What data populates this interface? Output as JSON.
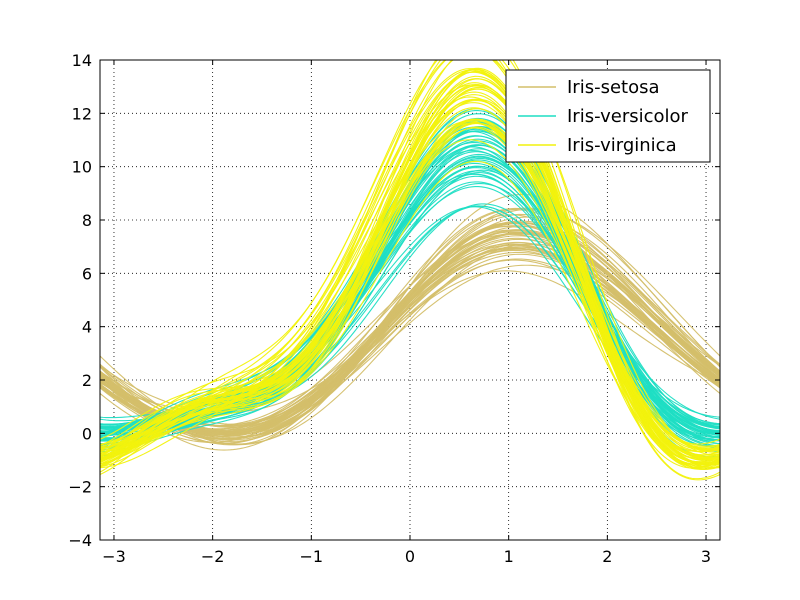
{
  "chart_data": {
    "type": "line",
    "title": "",
    "xlabel": "",
    "ylabel": "",
    "xlim": [
      -3.14159,
      3.14159
    ],
    "ylim": [
      -4,
      14
    ],
    "x_ticks": [
      -3,
      -2,
      -1,
      0,
      1,
      2,
      3
    ],
    "x_tick_labels": [
      "−3",
      "−2",
      "−1",
      "0",
      "1",
      "2",
      "3"
    ],
    "y_ticks": [
      -4,
      -2,
      0,
      2,
      4,
      6,
      8,
      10,
      12,
      14
    ],
    "y_tick_labels": [
      "−4",
      "−2",
      "0",
      "2",
      "4",
      "6",
      "8",
      "10",
      "12",
      "14"
    ],
    "grid": true,
    "legend": {
      "placement": "top-right"
    },
    "series": [
      {
        "name": "Iris-setosa",
        "color": "#d4bf6a",
        "curves": [
          [
            5.1,
            3.5,
            1.4,
            0.2
          ],
          [
            4.9,
            3.0,
            1.4,
            0.2
          ],
          [
            4.7,
            3.2,
            1.3,
            0.2
          ],
          [
            4.6,
            3.1,
            1.5,
            0.2
          ],
          [
            5.0,
            3.6,
            1.4,
            0.2
          ],
          [
            5.4,
            3.9,
            1.7,
            0.4
          ],
          [
            4.6,
            3.4,
            1.4,
            0.3
          ],
          [
            5.0,
            3.4,
            1.5,
            0.2
          ],
          [
            4.4,
            2.9,
            1.4,
            0.2
          ],
          [
            4.9,
            3.1,
            1.5,
            0.1
          ],
          [
            5.4,
            3.7,
            1.5,
            0.2
          ],
          [
            4.8,
            3.4,
            1.6,
            0.2
          ],
          [
            4.8,
            3.0,
            1.4,
            0.1
          ],
          [
            4.3,
            3.0,
            1.1,
            0.1
          ],
          [
            5.8,
            4.0,
            1.2,
            0.2
          ],
          [
            5.7,
            4.4,
            1.5,
            0.4
          ],
          [
            5.4,
            3.9,
            1.3,
            0.4
          ],
          [
            5.1,
            3.5,
            1.4,
            0.3
          ],
          [
            5.7,
            3.8,
            1.7,
            0.3
          ],
          [
            5.1,
            3.8,
            1.5,
            0.3
          ],
          [
            5.4,
            3.4,
            1.7,
            0.2
          ],
          [
            5.1,
            3.7,
            1.5,
            0.4
          ],
          [
            4.6,
            3.6,
            1.0,
            0.2
          ],
          [
            5.1,
            3.3,
            1.7,
            0.5
          ],
          [
            4.8,
            3.4,
            1.9,
            0.2
          ],
          [
            5.0,
            3.0,
            1.6,
            0.2
          ],
          [
            5.0,
            3.4,
            1.6,
            0.4
          ],
          [
            5.2,
            3.5,
            1.5,
            0.2
          ],
          [
            5.2,
            3.4,
            1.4,
            0.2
          ],
          [
            4.7,
            3.2,
            1.6,
            0.2
          ],
          [
            4.8,
            3.1,
            1.6,
            0.2
          ],
          [
            5.4,
            3.4,
            1.5,
            0.4
          ],
          [
            5.2,
            4.1,
            1.5,
            0.1
          ],
          [
            5.5,
            4.2,
            1.4,
            0.2
          ],
          [
            4.9,
            3.1,
            1.5,
            0.1
          ],
          [
            5.0,
            3.2,
            1.2,
            0.2
          ],
          [
            5.5,
            3.5,
            1.3,
            0.2
          ],
          [
            4.4,
            3.0,
            1.3,
            0.2
          ],
          [
            5.1,
            3.4,
            1.5,
            0.2
          ],
          [
            5.0,
            3.5,
            1.3,
            0.3
          ],
          [
            4.5,
            2.3,
            1.3,
            0.3
          ],
          [
            4.4,
            3.2,
            1.3,
            0.2
          ],
          [
            5.0,
            3.5,
            1.6,
            0.6
          ],
          [
            5.1,
            3.8,
            1.9,
            0.4
          ],
          [
            4.8,
            3.0,
            1.4,
            0.3
          ],
          [
            5.1,
            3.8,
            1.6,
            0.2
          ],
          [
            4.6,
            3.2,
            1.4,
            0.2
          ],
          [
            5.3,
            3.7,
            1.5,
            0.2
          ],
          [
            5.0,
            3.3,
            1.4,
            0.2
          ],
          [
            5.7,
            3.0,
            1.5,
            0.2
          ]
        ]
      },
      {
        "name": "Iris-versicolor",
        "color": "#1fdec4",
        "curves": [
          [
            7.0,
            3.2,
            4.7,
            1.4
          ],
          [
            6.4,
            3.2,
            4.5,
            1.5
          ],
          [
            6.9,
            3.1,
            4.9,
            1.5
          ],
          [
            5.5,
            2.3,
            4.0,
            1.3
          ],
          [
            6.5,
            2.8,
            4.6,
            1.5
          ],
          [
            5.7,
            2.8,
            4.5,
            1.3
          ],
          [
            6.3,
            3.3,
            4.7,
            1.6
          ],
          [
            4.9,
            2.4,
            3.3,
            1.0
          ],
          [
            6.6,
            2.9,
            4.6,
            1.3
          ],
          [
            5.2,
            2.7,
            3.9,
            1.4
          ],
          [
            5.0,
            2.0,
            3.5,
            1.0
          ],
          [
            5.9,
            3.0,
            4.2,
            1.5
          ],
          [
            6.0,
            2.2,
            4.0,
            1.0
          ],
          [
            6.1,
            2.9,
            4.7,
            1.4
          ],
          [
            5.6,
            2.9,
            3.6,
            1.3
          ],
          [
            6.7,
            3.1,
            4.4,
            1.4
          ],
          [
            5.6,
            3.0,
            4.5,
            1.5
          ],
          [
            5.8,
            2.7,
            4.1,
            1.0
          ],
          [
            6.2,
            2.2,
            4.5,
            1.5
          ],
          [
            5.6,
            2.5,
            3.9,
            1.1
          ],
          [
            5.9,
            3.2,
            4.8,
            1.8
          ],
          [
            6.1,
            2.8,
            4.0,
            1.3
          ],
          [
            6.3,
            2.5,
            4.9,
            1.5
          ],
          [
            6.1,
            2.8,
            4.7,
            1.2
          ],
          [
            6.4,
            2.9,
            4.3,
            1.3
          ],
          [
            6.6,
            3.0,
            4.4,
            1.4
          ],
          [
            6.8,
            2.8,
            4.8,
            1.4
          ],
          [
            6.7,
            3.0,
            5.0,
            1.7
          ],
          [
            6.0,
            2.9,
            4.5,
            1.5
          ],
          [
            5.7,
            2.6,
            3.5,
            1.0
          ],
          [
            5.5,
            2.4,
            3.8,
            1.1
          ],
          [
            5.5,
            2.4,
            3.7,
            1.0
          ],
          [
            5.8,
            2.7,
            3.9,
            1.2
          ],
          [
            6.0,
            2.7,
            5.1,
            1.6
          ],
          [
            5.4,
            3.0,
            4.5,
            1.5
          ],
          [
            6.0,
            3.4,
            4.5,
            1.6
          ],
          [
            6.7,
            3.1,
            4.7,
            1.5
          ],
          [
            6.3,
            2.3,
            4.4,
            1.3
          ],
          [
            5.6,
            3.0,
            4.1,
            1.3
          ],
          [
            5.5,
            2.5,
            4.0,
            1.3
          ],
          [
            5.5,
            2.6,
            4.4,
            1.2
          ],
          [
            6.1,
            3.0,
            4.6,
            1.4
          ],
          [
            5.8,
            2.6,
            4.0,
            1.2
          ],
          [
            5.0,
            2.3,
            3.3,
            1.0
          ],
          [
            5.6,
            2.7,
            4.2,
            1.3
          ],
          [
            5.7,
            3.0,
            4.2,
            1.2
          ],
          [
            5.7,
            2.9,
            4.2,
            1.3
          ],
          [
            6.2,
            2.9,
            4.3,
            1.3
          ],
          [
            5.1,
            2.5,
            3.0,
            1.1
          ],
          [
            5.7,
            2.8,
            4.1,
            1.3
          ]
        ]
      },
      {
        "name": "Iris-virginica",
        "color": "#f2f20d",
        "curves": [
          [
            6.3,
            3.3,
            6.0,
            2.5
          ],
          [
            5.8,
            2.7,
            5.1,
            1.9
          ],
          [
            7.1,
            3.0,
            5.9,
            2.1
          ],
          [
            6.3,
            2.9,
            5.6,
            1.8
          ],
          [
            6.5,
            3.0,
            5.8,
            2.2
          ],
          [
            7.6,
            3.0,
            6.6,
            2.1
          ],
          [
            4.9,
            2.5,
            4.5,
            1.7
          ],
          [
            7.3,
            2.9,
            6.3,
            1.8
          ],
          [
            6.7,
            2.5,
            5.8,
            1.8
          ],
          [
            7.2,
            3.6,
            6.1,
            2.5
          ],
          [
            6.5,
            3.2,
            5.1,
            2.0
          ],
          [
            6.4,
            2.7,
            5.3,
            1.9
          ],
          [
            6.8,
            3.0,
            5.5,
            2.1
          ],
          [
            5.7,
            2.5,
            5.0,
            2.0
          ],
          [
            5.8,
            2.8,
            5.1,
            2.4
          ],
          [
            6.4,
            3.2,
            5.3,
            2.3
          ],
          [
            6.5,
            3.0,
            5.5,
            1.8
          ],
          [
            7.7,
            3.8,
            6.7,
            2.2
          ],
          [
            7.7,
            2.6,
            6.9,
            2.3
          ],
          [
            6.0,
            2.2,
            5.0,
            1.5
          ],
          [
            6.9,
            3.2,
            5.7,
            2.3
          ],
          [
            5.6,
            2.8,
            4.9,
            2.0
          ],
          [
            7.7,
            2.8,
            6.7,
            2.0
          ],
          [
            6.3,
            2.7,
            4.9,
            1.8
          ],
          [
            6.7,
            3.3,
            5.7,
            2.1
          ],
          [
            7.2,
            3.2,
            6.0,
            1.8
          ],
          [
            6.2,
            2.8,
            4.8,
            1.8
          ],
          [
            6.1,
            3.0,
            4.9,
            1.8
          ],
          [
            6.4,
            2.8,
            5.6,
            2.1
          ],
          [
            7.2,
            3.0,
            5.8,
            1.6
          ],
          [
            7.4,
            2.8,
            6.1,
            1.9
          ],
          [
            7.9,
            3.8,
            6.4,
            2.0
          ],
          [
            6.4,
            2.8,
            5.6,
            2.2
          ],
          [
            6.3,
            2.8,
            5.1,
            1.5
          ],
          [
            6.1,
            2.6,
            5.6,
            1.4
          ],
          [
            7.7,
            3.0,
            6.1,
            2.3
          ],
          [
            6.3,
            3.4,
            5.6,
            2.4
          ],
          [
            6.4,
            3.1,
            5.5,
            1.8
          ],
          [
            6.0,
            3.0,
            4.8,
            1.8
          ],
          [
            6.9,
            3.1,
            5.4,
            2.1
          ],
          [
            6.7,
            3.1,
            5.6,
            2.4
          ],
          [
            6.9,
            3.1,
            5.1,
            2.3
          ],
          [
            5.8,
            2.7,
            5.1,
            1.9
          ],
          [
            6.8,
            3.2,
            5.9,
            2.3
          ],
          [
            6.7,
            3.3,
            5.7,
            2.5
          ],
          [
            6.7,
            3.0,
            5.2,
            2.3
          ],
          [
            6.3,
            2.5,
            5.0,
            1.9
          ],
          [
            6.5,
            3.0,
            5.2,
            2.0
          ],
          [
            6.2,
            3.4,
            5.4,
            2.3
          ],
          [
            5.9,
            3.0,
            5.1,
            1.8
          ]
        ]
      }
    ]
  }
}
